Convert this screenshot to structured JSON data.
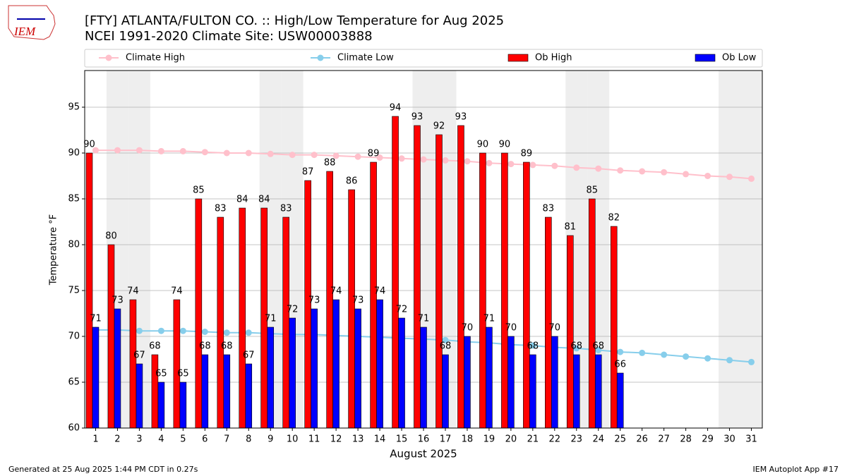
{
  "logo": "IEM",
  "footer_left": "Generated at 25 Aug 2025 1:44 PM CDT in 0.27s",
  "footer_right": "IEM Autoplot App #17",
  "chart_data": {
    "type": "bar",
    "title": "[FTY] ATLANTA/FULTON CO. :: High/Low Temperature for Aug 2025",
    "subtitle": "NCEI 1991-2020 Climate Site: USW00003888",
    "x_label": "August 2025",
    "y_label": "Temperature °F",
    "x": [
      1,
      2,
      3,
      4,
      5,
      6,
      7,
      8,
      9,
      10,
      11,
      12,
      13,
      14,
      15,
      16,
      17,
      18,
      19,
      20,
      21,
      22,
      23,
      24,
      25,
      26,
      27,
      28,
      29,
      30,
      31
    ],
    "xlim": [
      0.5,
      31.5
    ],
    "xticks": [
      1,
      2,
      3,
      4,
      5,
      6,
      7,
      8,
      9,
      10,
      11,
      12,
      13,
      14,
      15,
      16,
      17,
      18,
      19,
      20,
      21,
      22,
      23,
      24,
      25,
      26,
      27,
      28,
      29,
      30,
      31
    ],
    "ylim": [
      60,
      99
    ],
    "yticks": [
      60,
      65,
      70,
      75,
      80,
      85,
      90,
      95
    ],
    "grid": true,
    "weekend_days": [
      2,
      3,
      9,
      10,
      16,
      17,
      23,
      24,
      30,
      31
    ],
    "series": [
      {
        "name": "Climate High",
        "kind": "line",
        "color": "#ffc0cb",
        "values": [
          90.3,
          90.3,
          90.3,
          90.2,
          90.2,
          90.1,
          90.0,
          90.0,
          89.9,
          89.8,
          89.8,
          89.7,
          89.6,
          89.5,
          89.4,
          89.3,
          89.2,
          89.1,
          88.9,
          88.8,
          88.7,
          88.6,
          88.4,
          88.3,
          88.1,
          88.0,
          87.9,
          87.7,
          87.5,
          87.4,
          87.2
        ]
      },
      {
        "name": "Climate Low",
        "kind": "line",
        "color": "#87ceeb",
        "values": [
          70.7,
          70.7,
          70.6,
          70.6,
          70.6,
          70.5,
          70.4,
          70.4,
          70.3,
          70.2,
          70.2,
          70.1,
          70.0,
          69.9,
          69.8,
          69.7,
          69.6,
          69.4,
          69.3,
          69.1,
          69.0,
          68.8,
          68.7,
          68.5,
          68.3,
          68.2,
          68.0,
          67.8,
          67.6,
          67.4,
          67.2
        ]
      },
      {
        "name": "Ob High",
        "kind": "bar",
        "color": "#ff0000",
        "offset": -1,
        "values": [
          90,
          80,
          74,
          68,
          74,
          85,
          83,
          84,
          84,
          83,
          87,
          88,
          86,
          89,
          94,
          93,
          92,
          93,
          90,
          90,
          89,
          83,
          81,
          85,
          82,
          null,
          null,
          null,
          null,
          null,
          null
        ]
      },
      {
        "name": "Ob Low",
        "kind": "bar",
        "color": "#0000ff",
        "offset": 0,
        "values": [
          71,
          73,
          67,
          65,
          65,
          68,
          68,
          67,
          71,
          72,
          73,
          74,
          73,
          74,
          72,
          71,
          68,
          70,
          71,
          70,
          68,
          70,
          68,
          68,
          66,
          null,
          null,
          null,
          null,
          null,
          null
        ]
      }
    ]
  }
}
